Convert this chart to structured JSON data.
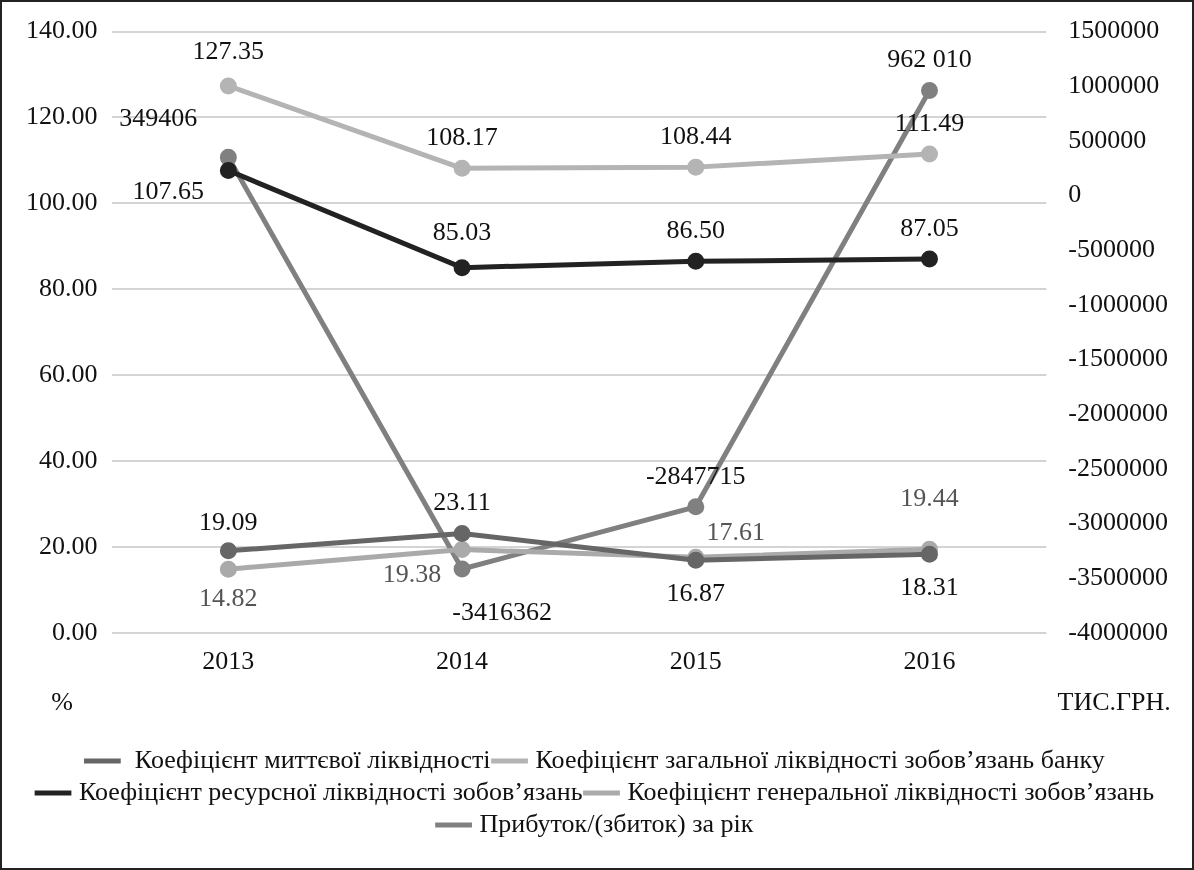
{
  "chart_data": {
    "type": "line",
    "ylabel": "%",
    "y2label": "ТИС.ГРН.",
    "categories": [
      "2013",
      "2014",
      "2015",
      "2016"
    ],
    "series": [
      {
        "name": " Коефіцієнт миттєвої ліквідності",
        "color": "#666666",
        "values": [
          19.09,
          23.11,
          16.87,
          18.31
        ],
        "value_labels": [
          "19.09",
          "23.11",
          "16.87",
          "18.31"
        ]
      },
      {
        "name": "Коефіцієнт загальної ліквідності зобов’язань банку",
        "color": "#b4b4b4",
        "values": [
          127.35,
          108.17,
          108.44,
          111.49
        ],
        "value_labels": [
          "127.35",
          "108.17",
          "108.44",
          "111.49"
        ]
      },
      {
        "name": "Коефіцієнт ресурсної ліквідності зобов’язань",
        "color": "#222222",
        "values": [
          107.65,
          85.03,
          86.5,
          87.05
        ],
        "value_labels": [
          "107.65",
          "85.03",
          "86.50",
          "87.05"
        ]
      },
      {
        "name": "Коефіцієнт генеральної ліквідності зобов’язань",
        "color": "#aaaaaa",
        "values": [
          14.82,
          19.38,
          17.61,
          19.44
        ],
        "value_labels": [
          "14.82",
          "19.38",
          "17.61",
          "19.44"
        ]
      },
      {
        "name": "Прибуток/(збиток) за рік",
        "color": "#808080",
        "axis": "y2",
        "values": [
          349406,
          -3416362,
          -2847715,
          962010
        ],
        "value_labels": [
          "349406",
          "-3416362",
          "-2847715",
          "962 010"
        ]
      }
    ],
    "ylim": [
      0,
      140
    ],
    "yticks": [
      {
        "value": 0,
        "label": "0.00"
      },
      {
        "value": 20,
        "label": "20.00"
      },
      {
        "value": 40,
        "label": "40.00"
      },
      {
        "value": 60,
        "label": "60.00"
      },
      {
        "value": 80,
        "label": "80.00"
      },
      {
        "value": 100,
        "label": "100.00"
      },
      {
        "value": 120,
        "label": "120.00"
      },
      {
        "value": 140,
        "label": "140.00"
      }
    ],
    "y2lim": [
      -4000000,
      1500000
    ],
    "y2ticks": [
      -4000000,
      -3500000,
      -3000000,
      -2500000,
      -2000000,
      -1500000,
      -1000000,
      -500000,
      0,
      500000,
      1000000,
      1500000
    ],
    "grid": "y",
    "legend": "bottom",
    "marker": "circle",
    "line_style": "solid"
  }
}
